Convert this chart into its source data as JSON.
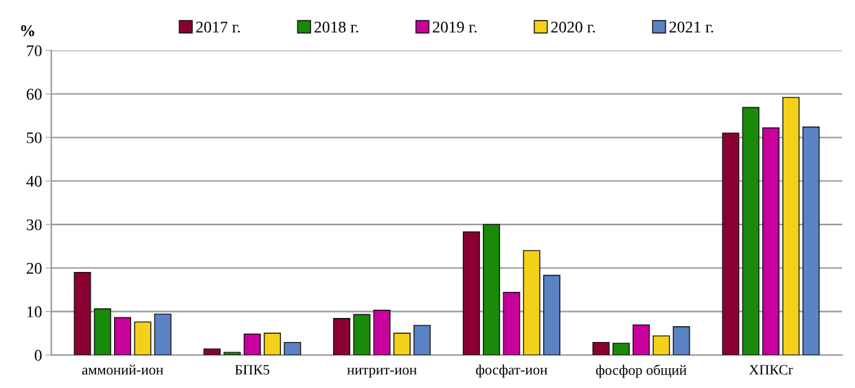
{
  "chart_data": {
    "type": "bar",
    "ylabel": "%",
    "categories": [
      "аммоний-ион",
      "БПК5",
      "нитрит-ион",
      "фосфат-ион",
      "фосфор общий",
      "ХПКСr"
    ],
    "series": [
      {
        "name": "2017 г.",
        "color": "#8b0033",
        "values": [
          19.0,
          1.4,
          8.4,
          28.3,
          2.9,
          51.0
        ]
      },
      {
        "name": "2018 г.",
        "color": "#1a8a0a",
        "values": [
          10.6,
          0.6,
          9.3,
          30.0,
          2.7,
          56.9
        ]
      },
      {
        "name": "2019 г.",
        "color": "#c8009c",
        "values": [
          8.6,
          4.8,
          10.3,
          14.4,
          6.9,
          52.2
        ]
      },
      {
        "name": "2020 г.",
        "color": "#f5d01a",
        "values": [
          7.6,
          5.0,
          5.0,
          24.0,
          4.4,
          59.2
        ]
      },
      {
        "name": "2021 г.",
        "color": "#5b82c4",
        "values": [
          9.4,
          2.9,
          6.8,
          18.3,
          6.5,
          52.4
        ]
      }
    ],
    "ylim": [
      0,
      70
    ],
    "yticks": [
      0,
      10,
      20,
      30,
      40,
      50,
      60,
      70
    ],
    "grid": "y",
    "legend": "top"
  }
}
